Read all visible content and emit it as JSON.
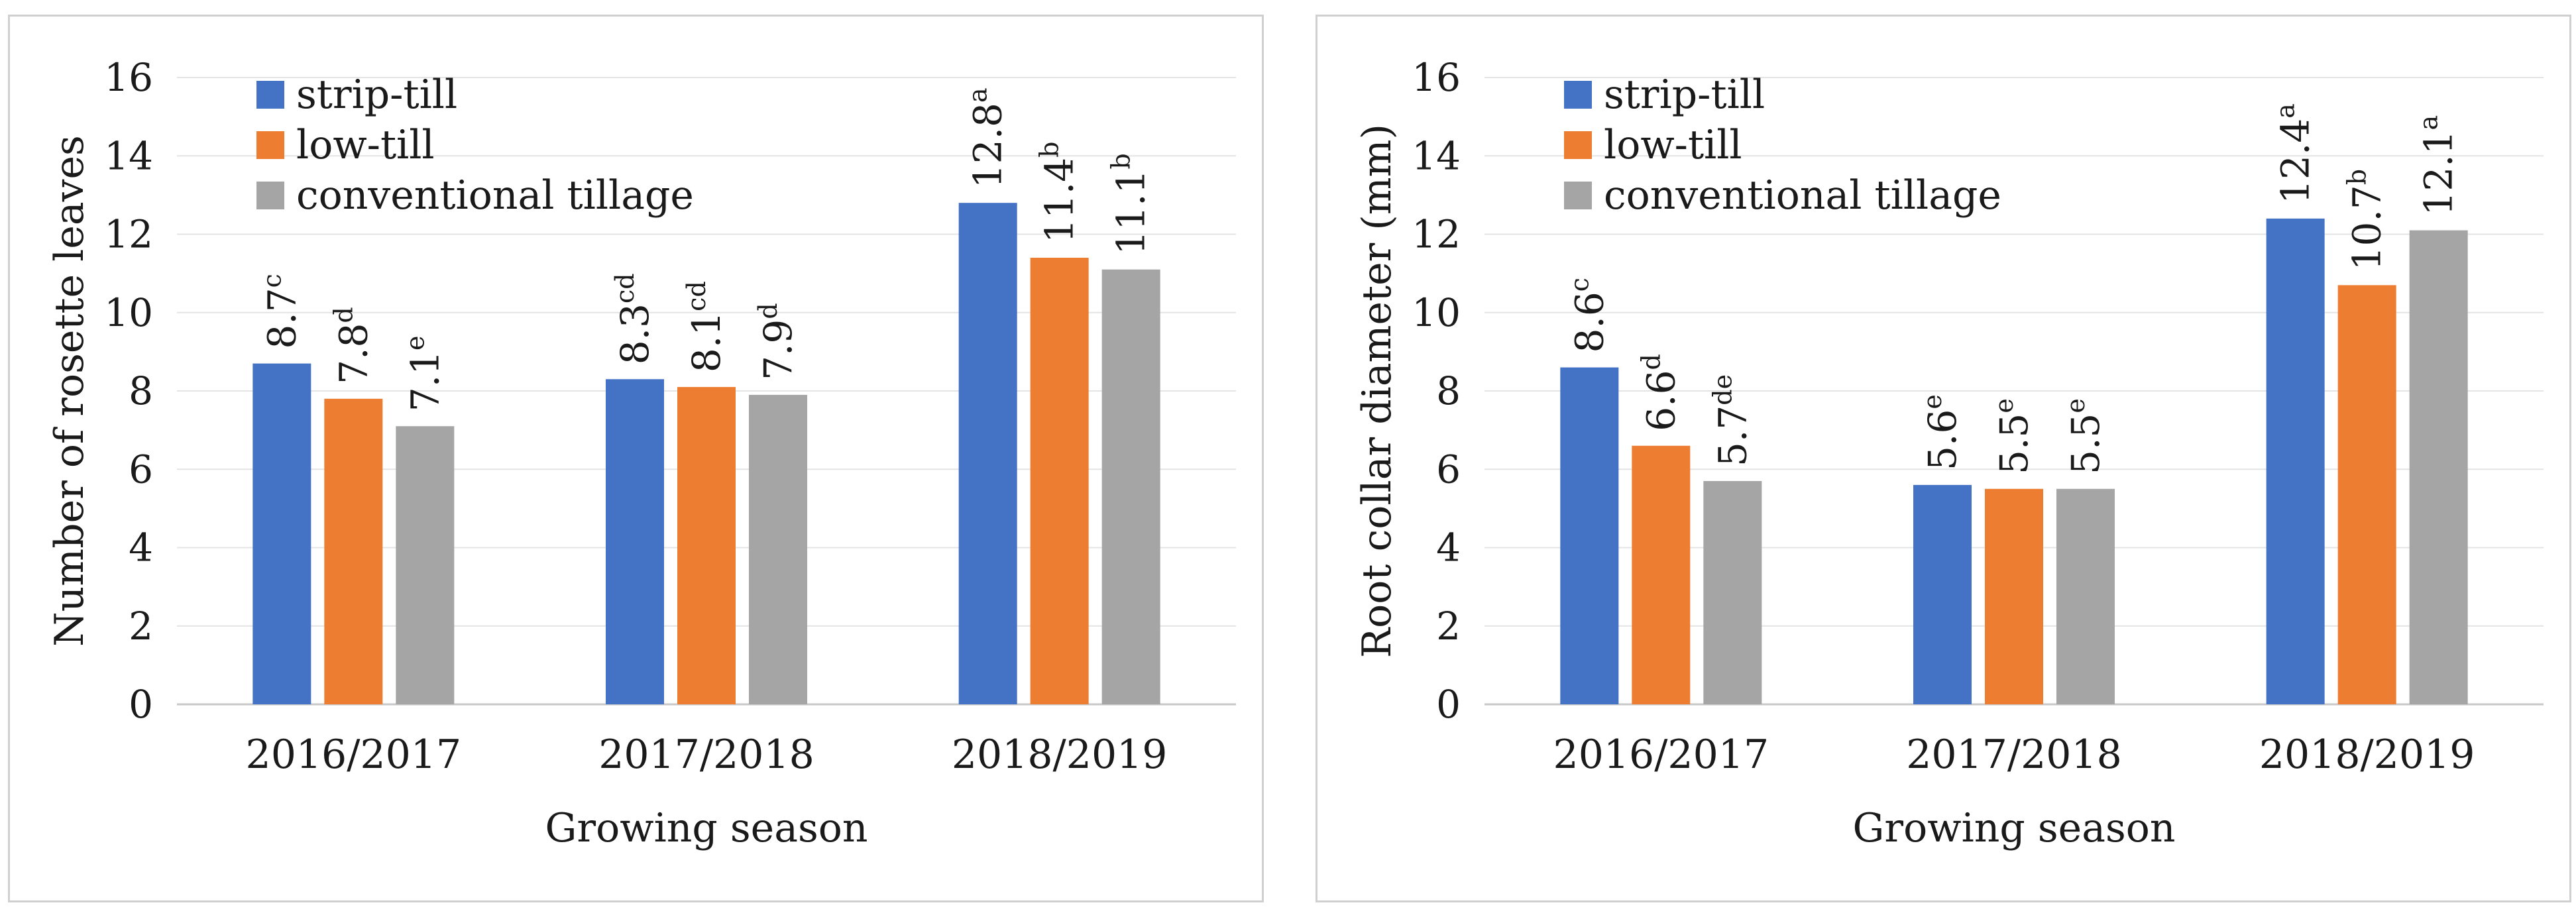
{
  "chart_data": [
    {
      "type": "bar",
      "title": "",
      "xlabel": "Growing season",
      "ylabel": "Number of rosette leaves",
      "ylim": [
        0,
        16
      ],
      "yticks": [
        0,
        2,
        4,
        6,
        8,
        10,
        12,
        14,
        16
      ],
      "grid": true,
      "legend_position": "top-left",
      "categories": [
        "2016/2017",
        "2017/2018",
        "2018/2019"
      ],
      "series": [
        {
          "name": "strip-till",
          "color": "#4472C4",
          "values": [
            8.7,
            8.3,
            12.8
          ],
          "labels": [
            "8.7",
            "8.3",
            "12.8"
          ],
          "letters": [
            "c",
            "cd",
            "a"
          ]
        },
        {
          "name": "low-till",
          "color": "#ED7D31",
          "values": [
            7.8,
            8.1,
            11.4
          ],
          "labels": [
            "7.8",
            "8.1",
            "11.4"
          ],
          "letters": [
            "d",
            "cd",
            "b"
          ]
        },
        {
          "name": "conventional tillage",
          "color": "#A5A5A5",
          "values": [
            7.1,
            7.9,
            11.1
          ],
          "labels": [
            "7.1",
            "7.9",
            "11.1"
          ],
          "letters": [
            "e",
            "d",
            "b"
          ]
        }
      ]
    },
    {
      "type": "bar",
      "title": "",
      "xlabel": "Growing season",
      "ylabel": "Root collar diameter (mm)",
      "ylim": [
        0,
        16
      ],
      "yticks": [
        0,
        2,
        4,
        6,
        8,
        10,
        12,
        14,
        16
      ],
      "grid": true,
      "legend_position": "top-left",
      "categories": [
        "2016/2017",
        "2017/2018",
        "2018/2019"
      ],
      "series": [
        {
          "name": "strip-till",
          "color": "#4472C4",
          "values": [
            8.6,
            5.6,
            12.4
          ],
          "labels": [
            "8.6",
            "5.6",
            "12.4"
          ],
          "letters": [
            "c",
            "e",
            "a"
          ]
        },
        {
          "name": "low-till",
          "color": "#ED7D31",
          "values": [
            6.6,
            5.5,
            10.7
          ],
          "labels": [
            "6.6",
            "5.5",
            "10.7"
          ],
          "letters": [
            "d",
            "e",
            "b"
          ]
        },
        {
          "name": "conventional tillage",
          "color": "#A5A5A5",
          "values": [
            5.7,
            5.5,
            12.1
          ],
          "labels": [
            "5.7",
            "5.5",
            "12.1"
          ],
          "letters": [
            "de",
            "e",
            "a"
          ]
        }
      ]
    }
  ]
}
